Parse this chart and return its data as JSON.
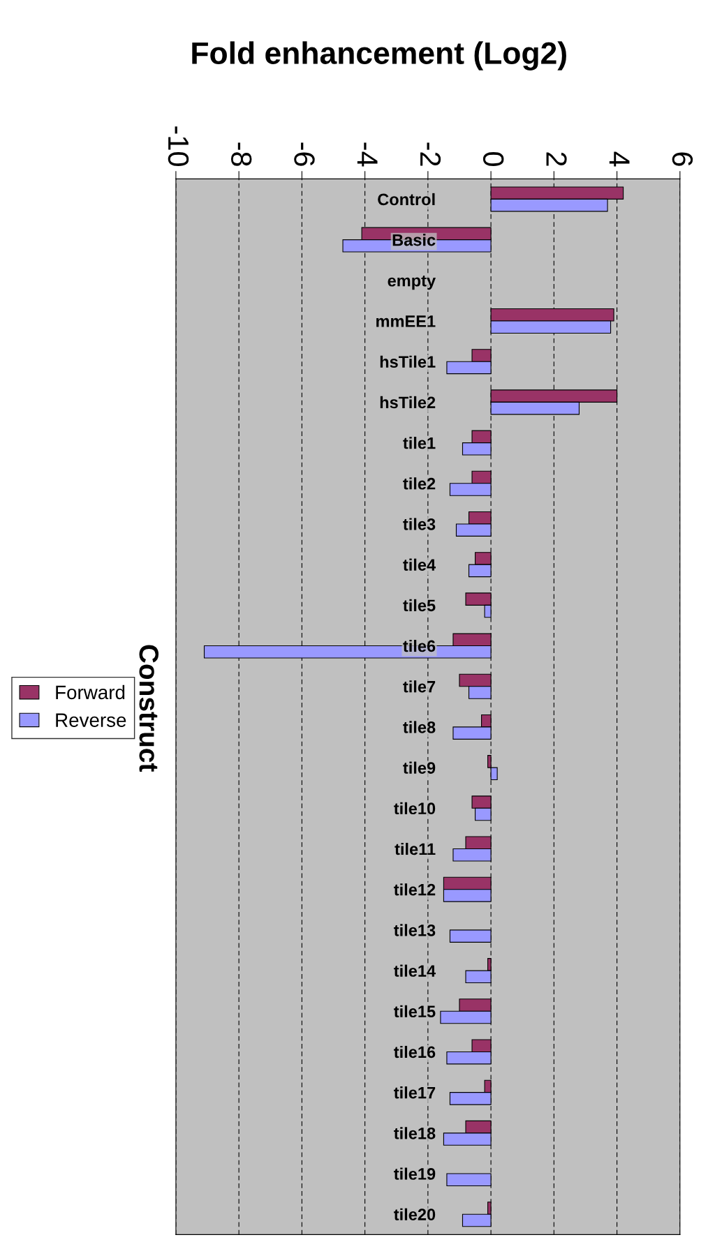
{
  "chart_data": {
    "type": "bar",
    "orientation": "horizontal",
    "title": "Fold enhancement (Log2)",
    "ylabel": "Construct",
    "categories": [
      "Control",
      "Basic",
      "empty",
      "mmEE1",
      "hsTile1",
      "hsTile2",
      "tile1",
      "tile2",
      "tile3",
      "tile4",
      "tile5",
      "tile6",
      "tile7",
      "tile8",
      "tile9",
      "tile10",
      "tile11",
      "tile12",
      "tile13",
      "tile14",
      "tile15",
      "tile16",
      "tile17",
      "tile18",
      "tile19",
      "tile20"
    ],
    "series": [
      {
        "name": "Forward",
        "color": "#993366",
        "values": [
          4.2,
          -4.1,
          null,
          3.9,
          -0.6,
          4.0,
          -0.6,
          -0.6,
          -0.7,
          -0.5,
          -0.8,
          -1.2,
          -1.0,
          -0.3,
          -0.1,
          -0.6,
          -0.8,
          -1.5,
          null,
          -0.1,
          -1.0,
          -0.6,
          -0.2,
          -0.8,
          null,
          -0.1
        ]
      },
      {
        "name": "Reverse",
        "color": "#9999ff",
        "values": [
          3.7,
          -4.7,
          null,
          3.8,
          -1.4,
          2.8,
          -0.9,
          -1.3,
          -1.1,
          -0.7,
          -0.2,
          -9.1,
          -0.7,
          -1.2,
          0.2,
          -0.5,
          -1.2,
          -1.5,
          -1.3,
          -0.8,
          -1.6,
          -1.4,
          -1.3,
          -1.5,
          -1.4,
          -0.9
        ]
      }
    ],
    "xlim": [
      -10,
      6
    ],
    "xticks": [
      -10,
      -8,
      -6,
      -4,
      -2,
      0,
      2,
      4,
      6
    ],
    "grid": "x",
    "legend": "left"
  }
}
